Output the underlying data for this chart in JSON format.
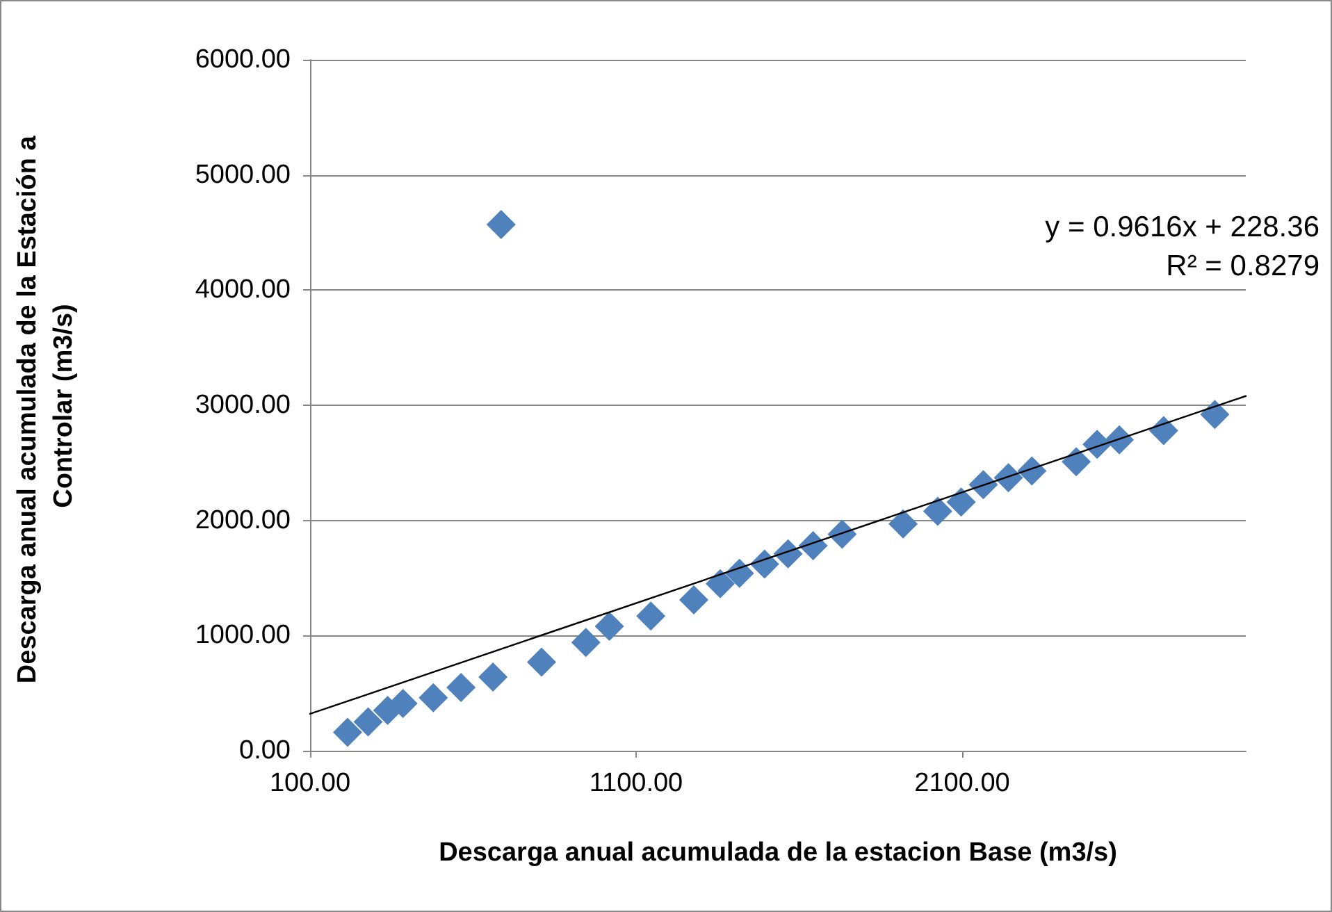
{
  "chart_data": {
    "type": "scatter",
    "xlabel": "Descarga anual acumulada de la estacion Base (m3/s)",
    "ylabel": "Descarga anual acumulada de la Estación a Controlar (m3/s)",
    "xlim": [
      100,
      2970
    ],
    "xticks": [
      {
        "value": 100,
        "label": "100.00"
      },
      {
        "value": 1100,
        "label": "1100.00"
      },
      {
        "value": 2100,
        "label": "2100.00"
      }
    ],
    "ylim": [
      0,
      6000
    ],
    "yticks": [
      {
        "value": 0,
        "label": "0.00"
      },
      {
        "value": 1000,
        "label": "1000.00"
      },
      {
        "value": 2000,
        "label": "2000.00"
      },
      {
        "value": 3000,
        "label": "3000.00"
      },
      {
        "value": 4000,
        "label": "4000.00"
      },
      {
        "value": 5000,
        "label": "5000.00"
      },
      {
        "value": 6000,
        "label": "6000.00"
      }
    ],
    "grid": "y",
    "annotations": [
      "y = 0.9616x + 228.36",
      "R² = 0.8279"
    ],
    "series": [
      {
        "type": "scatter",
        "marker": "diamond",
        "color": "#4f81bd",
        "x": [
          215,
          278,
          338,
          385,
          478,
          563,
          661,
          686,
          810,
          946,
          1018,
          1145,
          1277,
          1358,
          1417,
          1494,
          1566,
          1643,
          1732,
          1919,
          2025,
          2097,
          2165,
          2242,
          2314,
          2450,
          2514,
          2582,
          2718,
          2875
        ],
        "values": [
          160,
          250,
          350,
          410,
          460,
          550,
          640,
          4570,
          770,
          940,
          1080,
          1170,
          1310,
          1450,
          1540,
          1620,
          1710,
          1780,
          1880,
          1970,
          2080,
          2160,
          2310,
          2370,
          2430,
          2510,
          2660,
          2700,
          2780,
          2920
        ]
      },
      {
        "type": "line",
        "marker": "none",
        "line_style": "solid",
        "color": "#000000",
        "x": [
          100,
          2970
        ],
        "values": [
          320,
          3080
        ]
      }
    ]
  }
}
